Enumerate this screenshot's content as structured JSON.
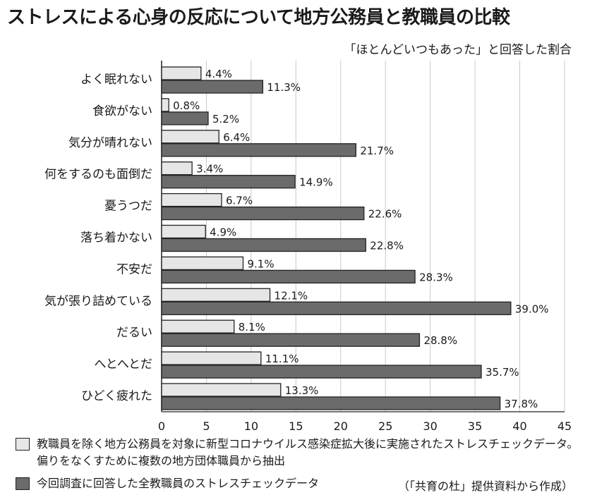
{
  "title": "ストレスによる心身の反応について地方公務員と教職員の比較",
  "subtitle": "「ほとんどいつもあった」と回答した割合",
  "colors": {
    "series1": "#e6e6e6",
    "series2": "#6b6b6b",
    "stroke": "#222222"
  },
  "chart_data": {
    "type": "bar",
    "orientation": "horizontal",
    "categories": [
      "よく眠れない",
      "食欲がない",
      "気分が晴れない",
      "何をするのも面倒だ",
      "憂うつだ",
      "落ち着かない",
      "不安だ",
      "気が張り詰めている",
      "だるい",
      "へとへとだ",
      "ひどく疲れた"
    ],
    "series": [
      {
        "name": "教職員を除く地方公務員を対象に新型コロナウイルス感染症拡大後に実施されたストレスチェックデータ。偏りをなくすために複数の地方団体職員から抽出",
        "values": [
          4.4,
          0.8,
          6.4,
          3.4,
          6.7,
          4.9,
          9.1,
          12.1,
          8.1,
          11.1,
          13.3
        ],
        "labels": [
          "4.4%",
          "0.8%",
          "6.4%",
          "3.4%",
          "6.7%",
          "4.9%",
          "9.1%",
          "12.1%",
          "8.1%",
          "11.1%",
          "13.3%"
        ]
      },
      {
        "name": "今回調査に回答した全教職員のストレスチェックデータ",
        "values": [
          11.3,
          5.2,
          21.7,
          14.9,
          22.6,
          22.8,
          28.3,
          39.0,
          28.8,
          35.7,
          37.8
        ],
        "labels": [
          "11.3%",
          "5.2%",
          "21.7%",
          "14.9%",
          "22.6%",
          "22.8%",
          "28.3%",
          "39.0%",
          "28.8%",
          "35.7%",
          "37.8%"
        ]
      }
    ],
    "xlim": [
      0,
      45
    ],
    "xticks": [
      "0",
      "5",
      "10",
      "15",
      "20",
      "25",
      "30",
      "35",
      "40",
      "45"
    ],
    "grid": true
  },
  "legend": [
    "教職員を除く地方公務員を対象に新型コロナウイルス感染症拡大後に実施されたストレスチェックデータ。偏りをなくすために複数の地方団体職員から抽出",
    "今回調査に回答した全教職員のストレスチェックデータ"
  ],
  "source": "（「共育の杜」提供資料から作成）"
}
